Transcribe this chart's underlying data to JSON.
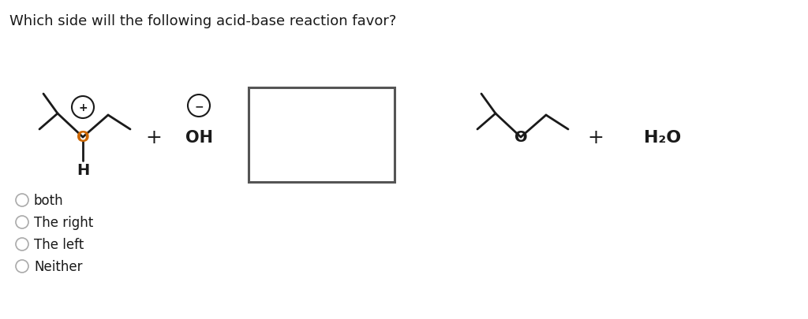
{
  "title": "Which side will the following acid-base reaction favor?",
  "title_fontsize": 13,
  "background_color": "#ffffff",
  "text_color": "#1a1a1a",
  "options": [
    "both",
    "The right",
    "The left",
    "Neither"
  ],
  "lw": 2.0,
  "circle_lw": 1.5,
  "radio_color": "#aaaaaa",
  "box_color": "#555555"
}
